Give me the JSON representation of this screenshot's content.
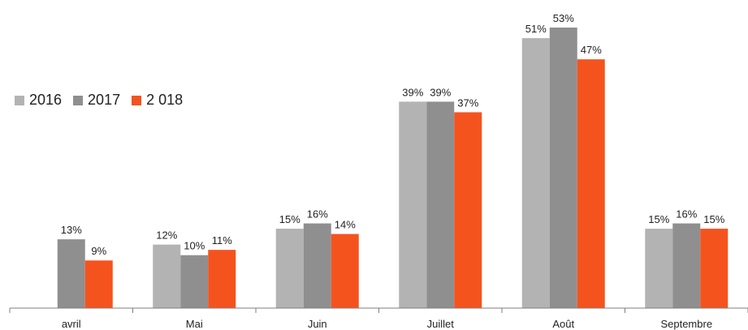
{
  "chart_data": {
    "type": "bar",
    "title": "",
    "xlabel": "",
    "ylabel": "",
    "categories": [
      "avril",
      "Mai",
      "Juin",
      "Juillet",
      "Août",
      "Septembre"
    ],
    "ylim": [
      0,
      55
    ],
    "grid": false,
    "legend_position": "left",
    "series": [
      {
        "name": "2016",
        "color": "#b3b3b3",
        "values": [
          null,
          12,
          15,
          39,
          51,
          15
        ],
        "labels": [
          "",
          "12%",
          "15%",
          "39%",
          "51%",
          "15%"
        ]
      },
      {
        "name": "2017",
        "color": "#8f8f8f",
        "values": [
          13,
          10,
          16,
          39,
          53,
          16
        ],
        "labels": [
          "13%",
          "10%",
          "16%",
          "39%",
          "53%",
          "16%"
        ]
      },
      {
        "name": "2 018",
        "color": "#f5531e",
        "values": [
          9,
          11,
          14,
          37,
          47,
          15
        ],
        "labels": [
          "9%",
          "11%",
          "14%",
          "37%",
          "47%",
          "15%"
        ]
      }
    ]
  }
}
